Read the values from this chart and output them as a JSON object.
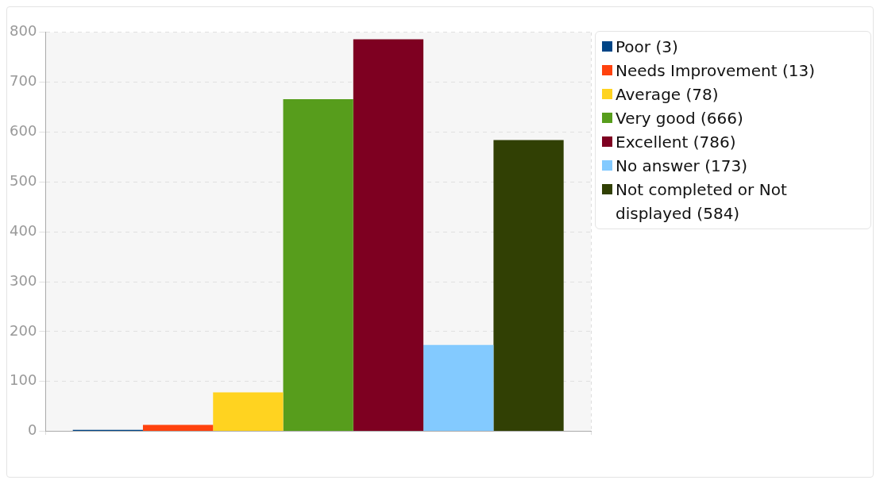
{
  "chart_data": {
    "type": "bar",
    "categories": [
      null
    ],
    "series": [
      {
        "name": "Poor (3)",
        "color": "#004586",
        "values": [
          3
        ]
      },
      {
        "name": "Needs Improvement (13)",
        "color": "#ff420e",
        "values": [
          13
        ]
      },
      {
        "name": "Average (78)",
        "color": "#ffd320",
        "values": [
          78
        ]
      },
      {
        "name": "Very good (666)",
        "color": "#579d1c",
        "values": [
          666
        ]
      },
      {
        "name": "Excellent (786)",
        "color": "#7e0021",
        "values": [
          786
        ]
      },
      {
        "name": "No answer (173)",
        "color": "#83caff",
        "values": [
          173
        ]
      },
      {
        "name": "Not completed or Not displayed (584)",
        "color": "#314004",
        "values": [
          584
        ]
      }
    ],
    "ylim": [
      0,
      800
    ],
    "yticks": [
      0,
      100,
      200,
      300,
      400,
      500,
      600,
      700,
      800
    ],
    "grid": true,
    "legend": "top right"
  }
}
